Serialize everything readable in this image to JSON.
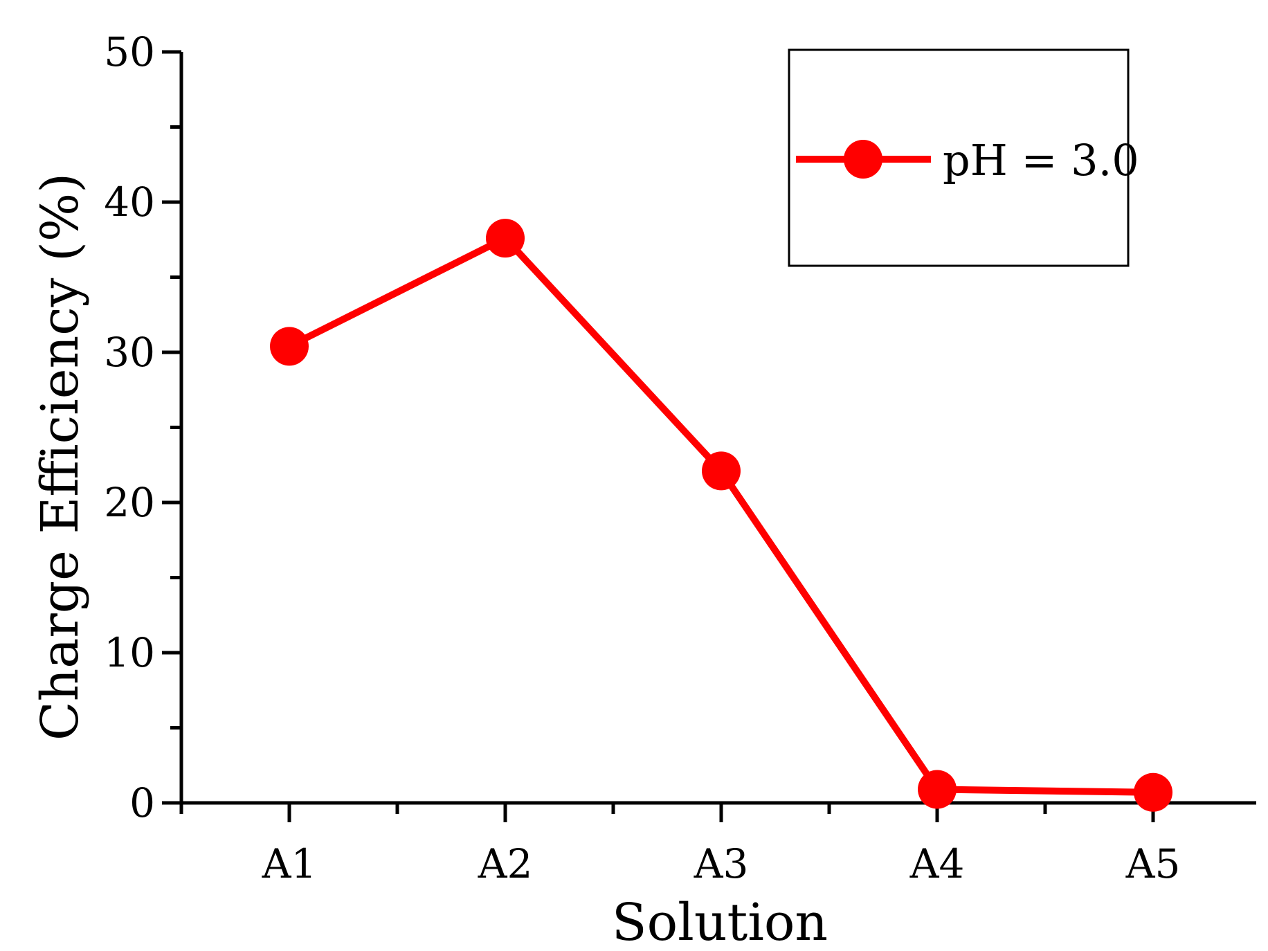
{
  "chart_data": {
    "type": "line",
    "title": "",
    "xlabel": "Solution",
    "ylabel": "Charge Efficiency (%)",
    "categories": [
      "A1",
      "A2",
      "A3",
      "A4",
      "A5"
    ],
    "ylim": [
      0,
      50
    ],
    "y_ticks": [
      "0",
      "10",
      "20",
      "30",
      "40",
      "50"
    ],
    "series": [
      {
        "name": "pH = 3.0",
        "values": [
          30.4,
          37.6,
          22.1,
          0.9,
          0.7
        ],
        "color": "#ff0000",
        "marker": "circle"
      }
    ],
    "legend": {
      "position": "top-right",
      "boxed": true
    },
    "grid": false
  }
}
